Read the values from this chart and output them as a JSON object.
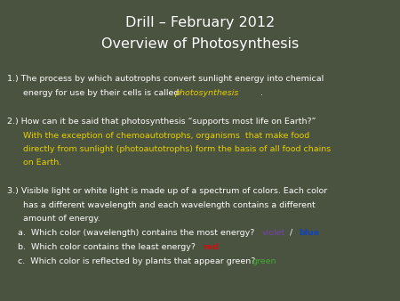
{
  "bg_color": "#4a5240",
  "title_line1": "Drill – February 2012",
  "title_line2": "Overview of Photosynthesis",
  "title_color": "#ffffff",
  "title_fontsize": 11.5,
  "body_color": "#ffffff",
  "body_fontsize": 6.8,
  "yellow_color": "#e8d000",
  "red_color": "#cc1111",
  "blue_color": "#1144bb",
  "violet_color": "#7744aa",
  "green_color": "#44aa33"
}
